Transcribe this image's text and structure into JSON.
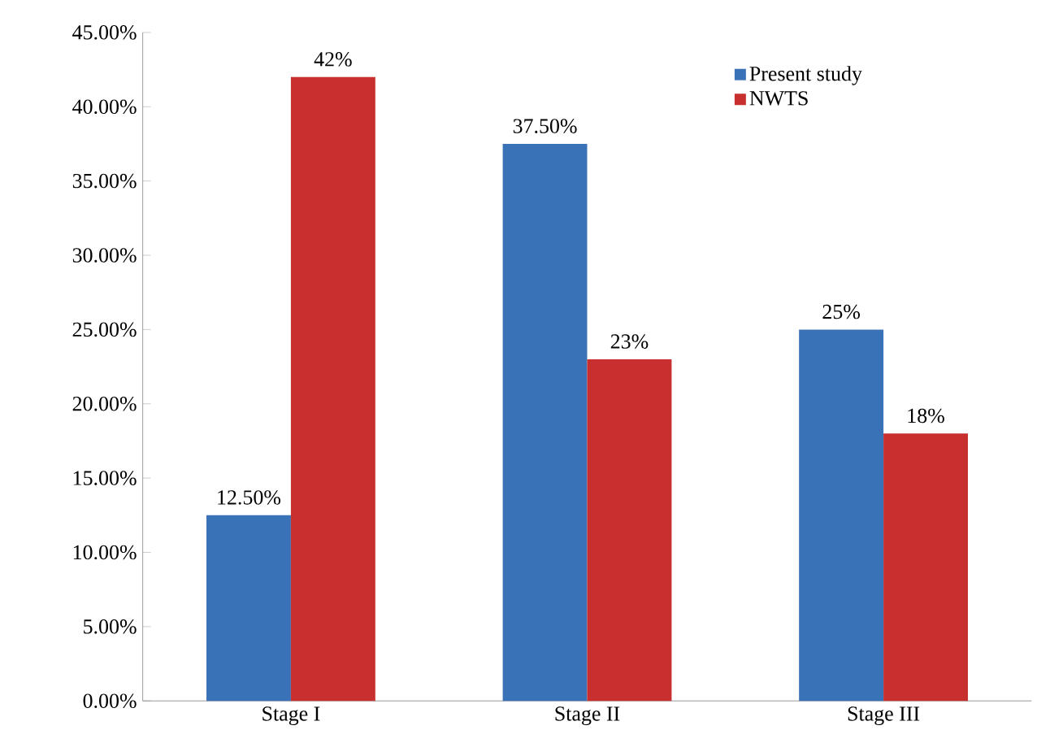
{
  "chart_data": {
    "type": "bar",
    "categories": [
      "Stage I",
      "Stage II",
      "Stage III"
    ],
    "series": [
      {
        "name": "Present study",
        "color": "#3a72b8",
        "values": [
          12.5,
          37.5,
          25
        ],
        "value_labels": [
          "12.50%",
          "37.50%",
          "25%"
        ]
      },
      {
        "name": "NWTS",
        "color": "#c8302f",
        "values": [
          42,
          23,
          18
        ],
        "value_labels": [
          "42%",
          "23%",
          "18%"
        ]
      }
    ],
    "ylim": [
      0,
      45
    ],
    "yticks": [
      {
        "value": 0,
        "label": "0.00%"
      },
      {
        "value": 5,
        "label": "5.00%"
      },
      {
        "value": 10,
        "label": "10.00%"
      },
      {
        "value": 15,
        "label": "15.00%"
      },
      {
        "value": 20,
        "label": "20.00%"
      },
      {
        "value": 25,
        "label": "25.00%"
      },
      {
        "value": 30,
        "label": "30.00%"
      },
      {
        "value": 35,
        "label": "35.00%"
      },
      {
        "value": 40,
        "label": "40.00%"
      },
      {
        "value": 45,
        "label": "45.00%"
      }
    ],
    "legend": "top right"
  }
}
